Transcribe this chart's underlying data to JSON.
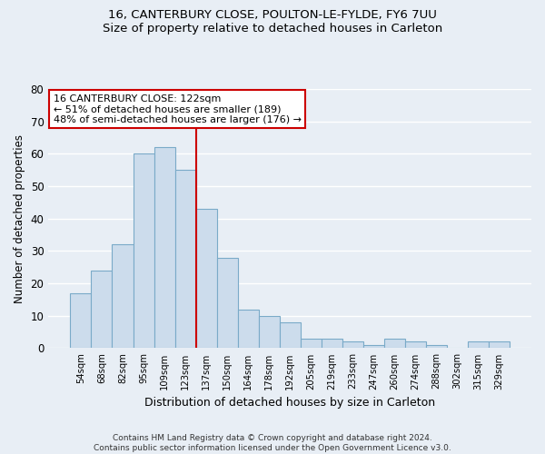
{
  "title": "16, CANTERBURY CLOSE, POULTON-LE-FYLDE, FY6 7UU",
  "subtitle": "Size of property relative to detached houses in Carleton",
  "xlabel": "Distribution of detached houses by size in Carleton",
  "ylabel": "Number of detached properties",
  "bar_labels": [
    "54sqm",
    "68sqm",
    "82sqm",
    "95sqm",
    "109sqm",
    "123sqm",
    "137sqm",
    "150sqm",
    "164sqm",
    "178sqm",
    "192sqm",
    "205sqm",
    "219sqm",
    "233sqm",
    "247sqm",
    "260sqm",
    "274sqm",
    "288sqm",
    "302sqm",
    "315sqm",
    "329sqm"
  ],
  "bar_values": [
    17,
    24,
    32,
    60,
    62,
    55,
    43,
    28,
    12,
    10,
    8,
    3,
    3,
    2,
    1,
    3,
    2,
    1,
    0,
    2,
    2
  ],
  "bar_color": "#ccdcec",
  "bar_edge_color": "#7aaac8",
  "highlight_line_color": "#cc0000",
  "highlight_bar_index": 5,
  "ylim": [
    0,
    80
  ],
  "yticks": [
    0,
    10,
    20,
    30,
    40,
    50,
    60,
    70,
    80
  ],
  "annotation_title": "16 CANTERBURY CLOSE: 122sqm",
  "annotation_line1": "← 51% of detached houses are smaller (189)",
  "annotation_line2": "48% of semi-detached houses are larger (176) →",
  "annotation_box_color": "#ffffff",
  "annotation_box_edge": "#cc0000",
  "footer_line1": "Contains HM Land Registry data © Crown copyright and database right 2024.",
  "footer_line2": "Contains public sector information licensed under the Open Government Licence v3.0.",
  "background_color": "#e8eef5",
  "grid_color": "#ffffff",
  "fig_width": 6.0,
  "fig_height": 5.0
}
